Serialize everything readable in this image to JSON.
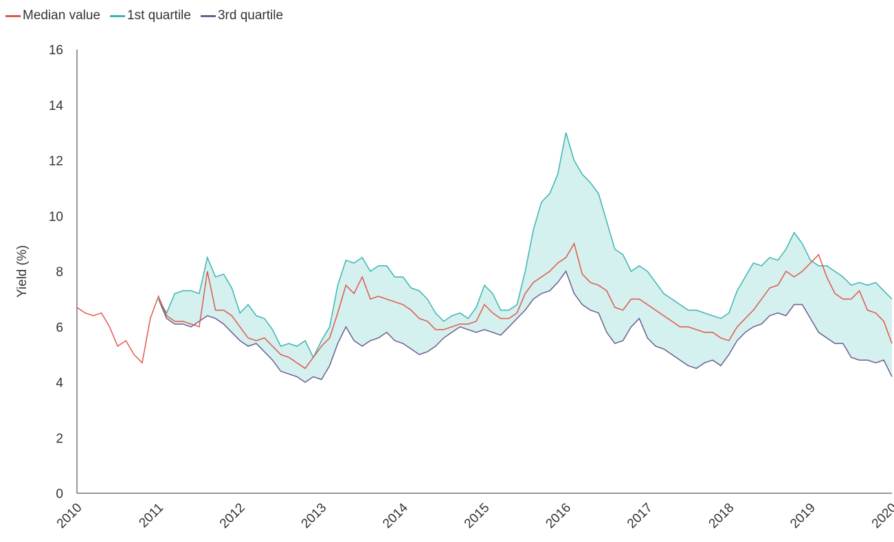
{
  "chart_data": {
    "type": "line",
    "ylabel": "Yield (%)",
    "x": [
      2010,
      2010.1,
      2010.2,
      2010.3,
      2010.4,
      2010.5,
      2010.6,
      2010.7,
      2010.8,
      2010.9,
      2011,
      2011.1,
      2011.2,
      2011.3,
      2011.4,
      2011.5,
      2011.6,
      2011.7,
      2011.8,
      2011.9,
      2012,
      2012.1,
      2012.2,
      2012.3,
      2012.4,
      2012.5,
      2012.6,
      2012.7,
      2012.8,
      2012.9,
      2013,
      2013.1,
      2013.2,
      2013.3,
      2013.4,
      2013.5,
      2013.6,
      2013.7,
      2013.8,
      2013.9,
      2014,
      2014.1,
      2014.2,
      2014.3,
      2014.4,
      2014.5,
      2014.6,
      2014.7,
      2014.8,
      2014.9,
      2015,
      2015.1,
      2015.2,
      2015.3,
      2015.4,
      2015.5,
      2015.6,
      2015.7,
      2015.8,
      2015.9,
      2016,
      2016.1,
      2016.2,
      2016.3,
      2016.4,
      2016.5,
      2016.6,
      2016.7,
      2016.8,
      2016.9,
      2017,
      2017.1,
      2017.2,
      2017.3,
      2017.4,
      2017.5,
      2017.6,
      2017.7,
      2017.8,
      2017.9,
      2018,
      2018.1,
      2018.2,
      2018.3,
      2018.4,
      2018.5,
      2018.6,
      2018.7,
      2018.8,
      2018.9,
      2019,
      2019.1,
      2019.2,
      2019.3,
      2019.4,
      2019.5,
      2019.6,
      2019.7,
      2019.8,
      2019.9,
      2020
    ],
    "series": [
      {
        "name": "Median value",
        "color": "#e0584a",
        "values": [
          6.7,
          6.5,
          6.4,
          6.5,
          6.0,
          5.3,
          5.5,
          5.0,
          4.7,
          6.3,
          7.1,
          6.4,
          6.2,
          6.2,
          6.1,
          6.0,
          8.0,
          6.6,
          6.6,
          6.4,
          6.0,
          5.6,
          5.5,
          5.6,
          5.3,
          5.0,
          4.9,
          4.7,
          4.5,
          4.9,
          5.3,
          5.6,
          6.5,
          7.5,
          7.2,
          7.8,
          7.0,
          7.1,
          7.0,
          6.9,
          6.8,
          6.6,
          6.3,
          6.2,
          5.9,
          5.9,
          6.0,
          6.1,
          6.1,
          6.2,
          6.8,
          6.5,
          6.3,
          6.3,
          6.5,
          7.2,
          7.6,
          7.8,
          8.0,
          8.3,
          8.5,
          9.0,
          7.9,
          7.6,
          7.5,
          7.3,
          6.7,
          6.6,
          7.0,
          7.0,
          6.8,
          6.6,
          6.4,
          6.2,
          6.0,
          6.0,
          5.9,
          5.8,
          5.8,
          5.6,
          5.5,
          6.0,
          6.3,
          6.6,
          7.0,
          7.4,
          7.5,
          8.0,
          7.8,
          8.0,
          8.3,
          8.6,
          7.8,
          7.2,
          7.0,
          7.0,
          7.3,
          6.6,
          6.5,
          6.2,
          5.4
        ]
      },
      {
        "name": "1st quartile",
        "color": "#3bb5b0",
        "values": [
          null,
          null,
          null,
          null,
          null,
          null,
          null,
          null,
          null,
          null,
          7.0,
          6.5,
          7.2,
          7.3,
          7.3,
          7.2,
          8.5,
          7.8,
          7.9,
          7.4,
          6.5,
          6.8,
          6.4,
          6.3,
          5.9,
          5.3,
          5.4,
          5.3,
          5.5,
          4.9,
          5.5,
          6.0,
          7.5,
          8.4,
          8.3,
          8.5,
          8.0,
          8.2,
          8.2,
          7.8,
          7.8,
          7.4,
          7.3,
          7.0,
          6.5,
          6.2,
          6.4,
          6.5,
          6.3,
          6.7,
          7.5,
          7.2,
          6.6,
          6.6,
          6.8,
          8.0,
          9.5,
          10.5,
          10.8,
          11.5,
          13.0,
          12.0,
          11.5,
          11.2,
          10.8,
          9.8,
          8.8,
          8.6,
          8.0,
          8.2,
          8.0,
          7.6,
          7.2,
          7.0,
          6.8,
          6.6,
          6.6,
          6.5,
          6.4,
          6.3,
          6.5,
          7.3,
          7.8,
          8.3,
          8.2,
          8.5,
          8.4,
          8.8,
          9.4,
          9.0,
          8.4,
          8.2,
          8.2,
          8.0,
          7.8,
          7.5,
          7.6,
          7.5,
          7.6,
          7.3,
          7.0
        ]
      },
      {
        "name": "3rd quartile",
        "color": "#6b5d8f",
        "values": [
          null,
          null,
          null,
          null,
          null,
          null,
          null,
          null,
          null,
          null,
          7.0,
          6.3,
          6.1,
          6.1,
          6.0,
          6.2,
          6.4,
          6.3,
          6.1,
          5.8,
          5.5,
          5.3,
          5.4,
          5.1,
          4.8,
          4.4,
          4.3,
          4.2,
          4.0,
          4.2,
          4.1,
          4.6,
          5.4,
          6.0,
          5.5,
          5.3,
          5.5,
          5.6,
          5.8,
          5.5,
          5.4,
          5.2,
          5.0,
          5.1,
          5.3,
          5.6,
          5.8,
          6.0,
          5.9,
          5.8,
          5.9,
          5.8,
          5.7,
          6.0,
          6.3,
          6.6,
          7.0,
          7.2,
          7.3,
          7.6,
          8.0,
          7.2,
          6.8,
          6.6,
          6.5,
          5.8,
          5.4,
          5.5,
          6.0,
          6.3,
          5.6,
          5.3,
          5.2,
          5.0,
          4.8,
          4.6,
          4.5,
          4.7,
          4.8,
          4.6,
          5.0,
          5.5,
          5.8,
          6.0,
          6.1,
          6.4,
          6.5,
          6.4,
          6.8,
          6.8,
          6.3,
          5.8,
          5.6,
          5.4,
          5.4,
          4.9,
          4.8,
          4.8,
          4.7,
          4.8,
          4.2
        ]
      }
    ],
    "band_color": "#d4f0ef",
    "xlim": [
      2010,
      2020
    ],
    "xticks": [
      2010,
      2011,
      2012,
      2013,
      2014,
      2015,
      2016,
      2017,
      2018,
      2019,
      2020
    ],
    "ylim": [
      0,
      16
    ],
    "yticks": [
      0,
      2,
      4,
      6,
      8,
      10,
      12,
      14,
      16
    ],
    "legend": "top-left",
    "grid": false
  }
}
